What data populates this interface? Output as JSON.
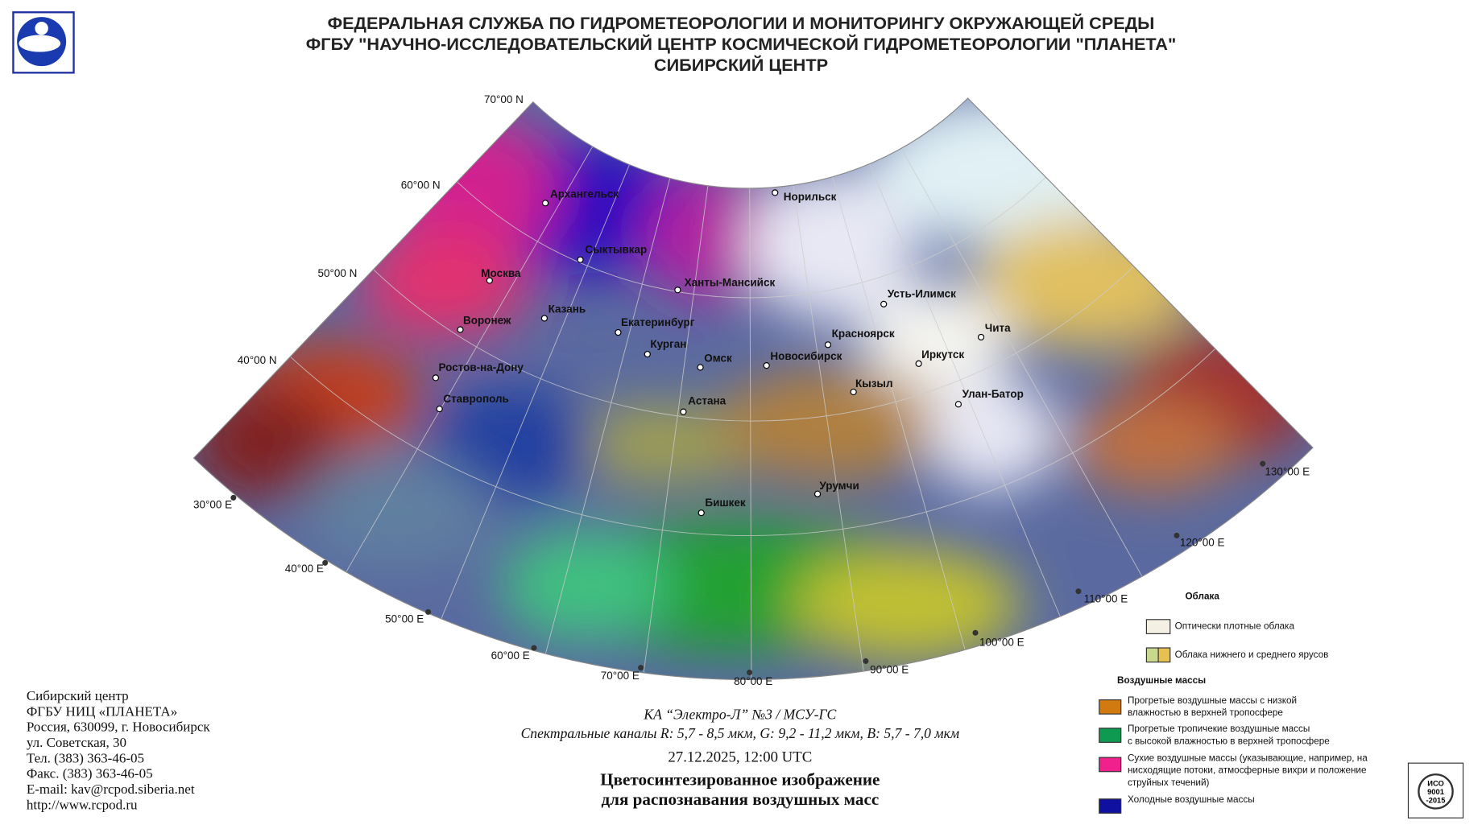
{
  "header": {
    "lines": [
      "ФЕДЕРАЛЬНАЯ СЛУЖБА ПО ГИДРОМЕТЕОРОЛОГИИ И МОНИТОРИНГУ ОКРУЖАЮЩЕЙ СРЕДЫ",
      "ФГБУ \"НАУЧНО-ИССЛЕДОВАТЕЛЬСКИЙ ЦЕНТР КОСМИЧЕСКОЙ ГИДРОМЕТЕОРОЛОГИИ \"ПЛАНЕТА\"",
      "СИБИРСКИЙ ЦЕНТР"
    ]
  },
  "map": {
    "lat_labels": [
      "70°00 N",
      "60°00 N",
      "50°00 N",
      "40°00 N"
    ],
    "lon_labels": [
      "30°00 E",
      "40°00 E",
      "50°00 E",
      "60°00 E",
      "70°00 E",
      "80°00 E",
      "90°00 E",
      "100°00 E",
      "110°00 E",
      "120°00 E",
      "130°00 E"
    ],
    "cities": [
      "Архангельск",
      "Норильск",
      "Сыктывкар",
      "Москва",
      "Ханты-Мансийск",
      "Усть-Илимск",
      "Казань",
      "Воронеж",
      "Екатеринбург",
      "Красноярск",
      "Чита",
      "Курган",
      "Омск",
      "Новосибирск",
      "Иркутск",
      "Ростов-на-Дону",
      "Кызыл",
      "Улан-Батор",
      "Ставрополь",
      "Астана",
      "Урумчи",
      "Бишкек"
    ]
  },
  "caption": {
    "satellite": "КА “Электро-Л” №3 / МСУ-ГС",
    "channels": "Спектральные каналы R: 5,7 - 8,5 мкм, G: 9,2 - 11,2 мкм, B: 5,7 - 7,0 мкм",
    "datetime": "27.12.2025, 12:00 UTC",
    "title": [
      "Цветосинтезированное изображение",
      "для распознавания воздушных масс"
    ]
  },
  "contact": {
    "lines": [
      "Сибирский центр",
      "ФГБУ НИЦ «ПЛАНЕТА»",
      "Россия, 630099, г. Новосибирск",
      "ул. Советская, 30",
      "Тел. (383) 363-46-05",
      "Факс. (383) 363-46-05",
      "E-mail: kav@rcpod.siberia.net",
      "http://www.rcpod.ru"
    ]
  },
  "legend": {
    "clouds_title": "Облака",
    "clouds": [
      {
        "color": "#f4f1e4",
        "lines": [
          "Оптически плотные облака"
        ]
      },
      {
        "color": "#c8d88c",
        "color2": "#e8c050",
        "lines": [
          "Облака нижнего и среднего ярусов"
        ]
      }
    ],
    "airmass_title": "Воздушные массы",
    "airmasses": [
      {
        "color": "#d07a10",
        "lines": [
          "Прогретые воздушные массы с низкой",
          "влажностью в верхней тропосфере"
        ]
      },
      {
        "color": "#0e9a50",
        "lines": [
          "Прогретые тропичекие воздушные массы",
          "с высокой влажностью в верхней тропосфере"
        ]
      },
      {
        "color": "#f0208c",
        "lines": [
          "Сухие воздушные массы (указывающие, например, на",
          "нисходящие потоки, атмосферные вихри и положение",
          "струйных течений)"
        ]
      },
      {
        "color": "#1010a0",
        "lines": [
          "Холодные воздушные массы"
        ]
      }
    ]
  },
  "iso": {
    "lines": [
      "ИСО",
      "9001",
      "-2015"
    ]
  }
}
